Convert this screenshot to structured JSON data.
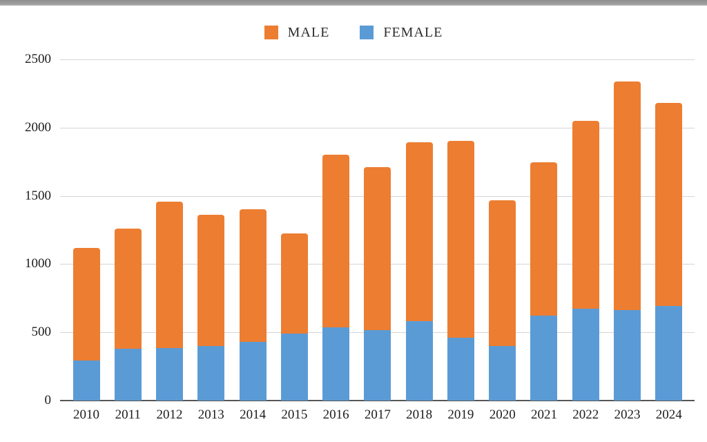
{
  "chart": {
    "legend": [
      {
        "label": "MALE",
        "color": "#ED7D31"
      },
      {
        "label": "FEMALE",
        "color": "#5B9BD5"
      }
    ]
  },
  "chart_data": {
    "type": "bar",
    "stacked": true,
    "title": "",
    "xlabel": "",
    "ylabel": "",
    "categories": [
      "2010",
      "2011",
      "2012",
      "2013",
      "2014",
      "2015",
      "2016",
      "2017",
      "2018",
      "2019",
      "2020",
      "2021",
      "2022",
      "2023",
      "2024"
    ],
    "series": [
      {
        "name": "FEMALE",
        "color": "#5B9BD5",
        "values": [
          295,
          380,
          385,
          400,
          430,
          490,
          535,
          515,
          580,
          460,
          400,
          620,
          675,
          665,
          695
        ]
      },
      {
        "name": "MALE",
        "color": "#ED7D31",
        "values": [
          825,
          880,
          1070,
          960,
          970,
          735,
          1265,
          1195,
          1315,
          1445,
          1070,
          1125,
          1375,
          1675,
          1485
        ]
      }
    ],
    "totals": [
      1120,
      1260,
      1455,
      1360,
      1400,
      1225,
      1800,
      1710,
      1895,
      1905,
      1470,
      1745,
      2050,
      2340,
      2180
    ],
    "ylim": [
      0,
      2500
    ],
    "yticks": [
      0,
      500,
      1000,
      1500,
      2000,
      2500
    ],
    "grid": true,
    "legend_position": "top-center",
    "axis_color": "#555555",
    "gridline_color": "#d4d4d4",
    "tick_label_color": "#1c1c1c"
  }
}
